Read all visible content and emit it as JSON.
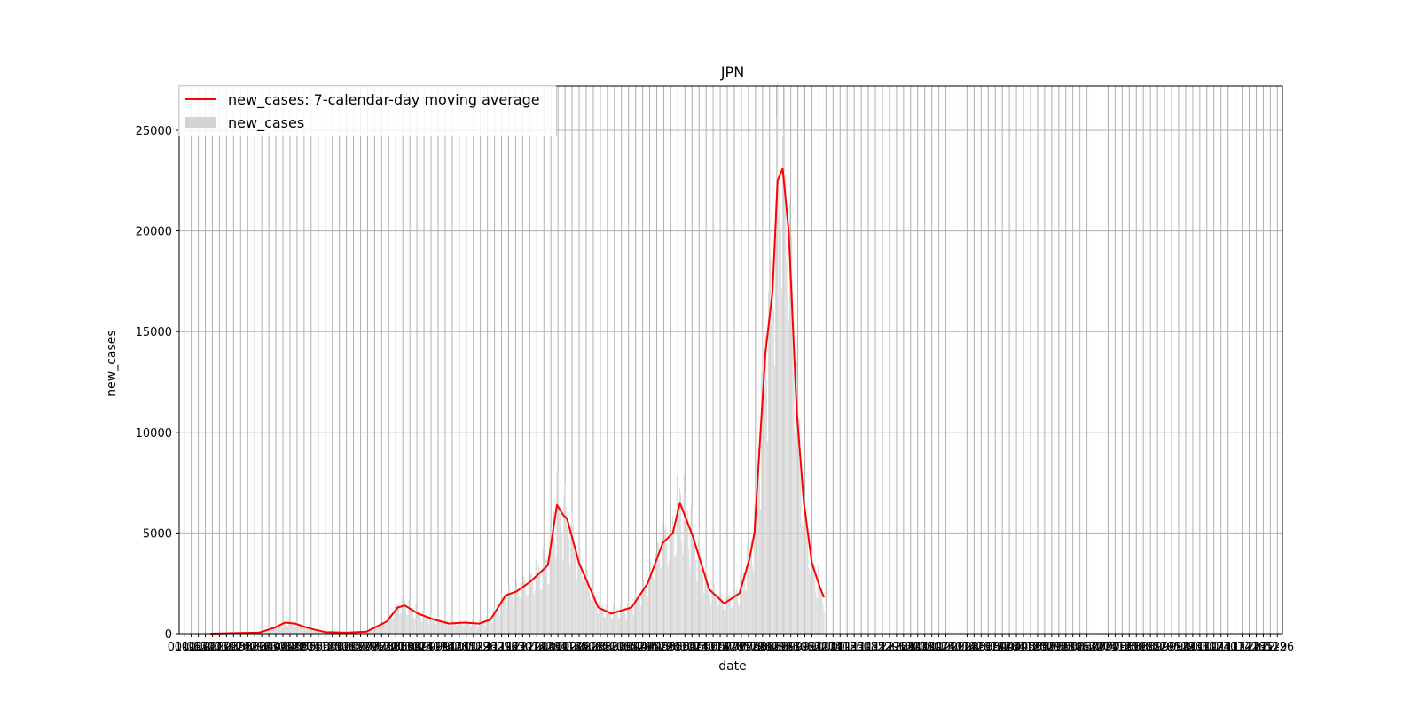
{
  "chart_data": {
    "type": "bar",
    "title": "JPN",
    "xlabel": "date",
    "ylabel": "new_cases",
    "ylim": [
      0,
      27200
    ],
    "yticks": [
      0,
      5000,
      10000,
      15000,
      20000,
      25000
    ],
    "grid": true,
    "legend_placement": "top-left",
    "x_axis": {
      "type": "date",
      "start": "2020-01-01",
      "end": "2022-12-31",
      "tick_interval": "weekly",
      "tick_labels_overlap": true
    },
    "series": [
      {
        "name": "new_cases: 7-calendar-day moving average",
        "kind": "line",
        "color": "#ff0000",
        "points": [
          {
            "x": "2020-02-01",
            "y": 0
          },
          {
            "x": "2020-03-01",
            "y": 30
          },
          {
            "x": "2020-03-20",
            "y": 50
          },
          {
            "x": "2020-04-05",
            "y": 300
          },
          {
            "x": "2020-04-15",
            "y": 550
          },
          {
            "x": "2020-04-25",
            "y": 500
          },
          {
            "x": "2020-05-10",
            "y": 250
          },
          {
            "x": "2020-05-25",
            "y": 80
          },
          {
            "x": "2020-06-15",
            "y": 50
          },
          {
            "x": "2020-07-05",
            "y": 100
          },
          {
            "x": "2020-07-25",
            "y": 600
          },
          {
            "x": "2020-08-05",
            "y": 1300
          },
          {
            "x": "2020-08-12",
            "y": 1400
          },
          {
            "x": "2020-08-25",
            "y": 1000
          },
          {
            "x": "2020-09-10",
            "y": 700
          },
          {
            "x": "2020-09-25",
            "y": 500
          },
          {
            "x": "2020-10-10",
            "y": 550
          },
          {
            "x": "2020-10-25",
            "y": 500
          },
          {
            "x": "2020-11-05",
            "y": 700
          },
          {
            "x": "2020-11-20",
            "y": 1900
          },
          {
            "x": "2020-12-01",
            "y": 2100
          },
          {
            "x": "2020-12-15",
            "y": 2600
          },
          {
            "x": "2021-01-01",
            "y": 3400
          },
          {
            "x": "2021-01-10",
            "y": 6400
          },
          {
            "x": "2021-01-16",
            "y": 5900
          },
          {
            "x": "2021-01-20",
            "y": 5700
          },
          {
            "x": "2021-02-01",
            "y": 3500
          },
          {
            "x": "2021-02-20",
            "y": 1300
          },
          {
            "x": "2021-03-05",
            "y": 1000
          },
          {
            "x": "2021-03-25",
            "y": 1300
          },
          {
            "x": "2021-04-10",
            "y": 2500
          },
          {
            "x": "2021-04-25",
            "y": 4500
          },
          {
            "x": "2021-05-05",
            "y": 5000
          },
          {
            "x": "2021-05-12",
            "y": 6500
          },
          {
            "x": "2021-05-25",
            "y": 4800
          },
          {
            "x": "2021-06-10",
            "y": 2200
          },
          {
            "x": "2021-06-25",
            "y": 1500
          },
          {
            "x": "2021-07-10",
            "y": 2000
          },
          {
            "x": "2021-07-20",
            "y": 3700
          },
          {
            "x": "2021-07-25",
            "y": 5000
          },
          {
            "x": "2021-07-31",
            "y": 10000
          },
          {
            "x": "2021-08-05",
            "y": 14000
          },
          {
            "x": "2021-08-12",
            "y": 17000
          },
          {
            "x": "2021-08-17",
            "y": 22500
          },
          {
            "x": "2021-08-22",
            "y": 23100
          },
          {
            "x": "2021-08-28",
            "y": 20000
          },
          {
            "x": "2021-09-05",
            "y": 11000
          },
          {
            "x": "2021-09-12",
            "y": 6500
          },
          {
            "x": "2021-09-20",
            "y": 3500
          },
          {
            "x": "2021-09-28",
            "y": 2300
          },
          {
            "x": "2021-10-02",
            "y": 1800
          }
        ]
      },
      {
        "name": "new_cases",
        "kind": "bar",
        "color": "#d3d3d3"
      }
    ]
  }
}
